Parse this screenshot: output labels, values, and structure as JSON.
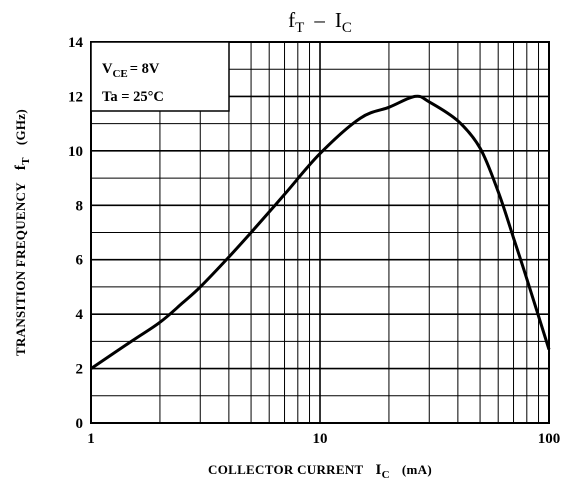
{
  "chart_data": {
    "type": "line",
    "title_parts": {
      "main_1": "f",
      "sub_1": "T",
      "dash": "–",
      "main_2": "I",
      "sub_2": "C"
    },
    "xlabel_parts": {
      "prefix": "COLLECTOR CURRENT",
      "symbol": "I",
      "sub": "C",
      "unit": "(mA)"
    },
    "ylabel_parts": {
      "prefix": "TRANSITION FREQUENCY",
      "symbol": "f",
      "sub": "T",
      "unit": "(GHz)"
    },
    "annotations": {
      "vce_main": "V",
      "vce_sub": "CE",
      "vce_value": "= 8V",
      "ta": "Ta = 25°C"
    },
    "x_scale": "log",
    "xlim": [
      1,
      100
    ],
    "ylim": [
      0,
      14
    ],
    "x_ticks": [
      "1",
      "10",
      "100"
    ],
    "y_ticks": [
      "0",
      "2",
      "4",
      "6",
      "8",
      "10",
      "12",
      "14"
    ],
    "grid": true,
    "series": [
      {
        "x": [
          1,
          1.5,
          2,
          2.5,
          3,
          4,
          5,
          7,
          10,
          15,
          20,
          26,
          30,
          40,
          50,
          60,
          70,
          80,
          100
        ],
        "y": [
          2.0,
          3.0,
          3.7,
          4.4,
          5.0,
          6.1,
          7.0,
          8.4,
          9.9,
          11.2,
          11.6,
          12.0,
          11.8,
          11.1,
          10.1,
          8.5,
          6.8,
          5.3,
          2.7
        ]
      }
    ]
  }
}
